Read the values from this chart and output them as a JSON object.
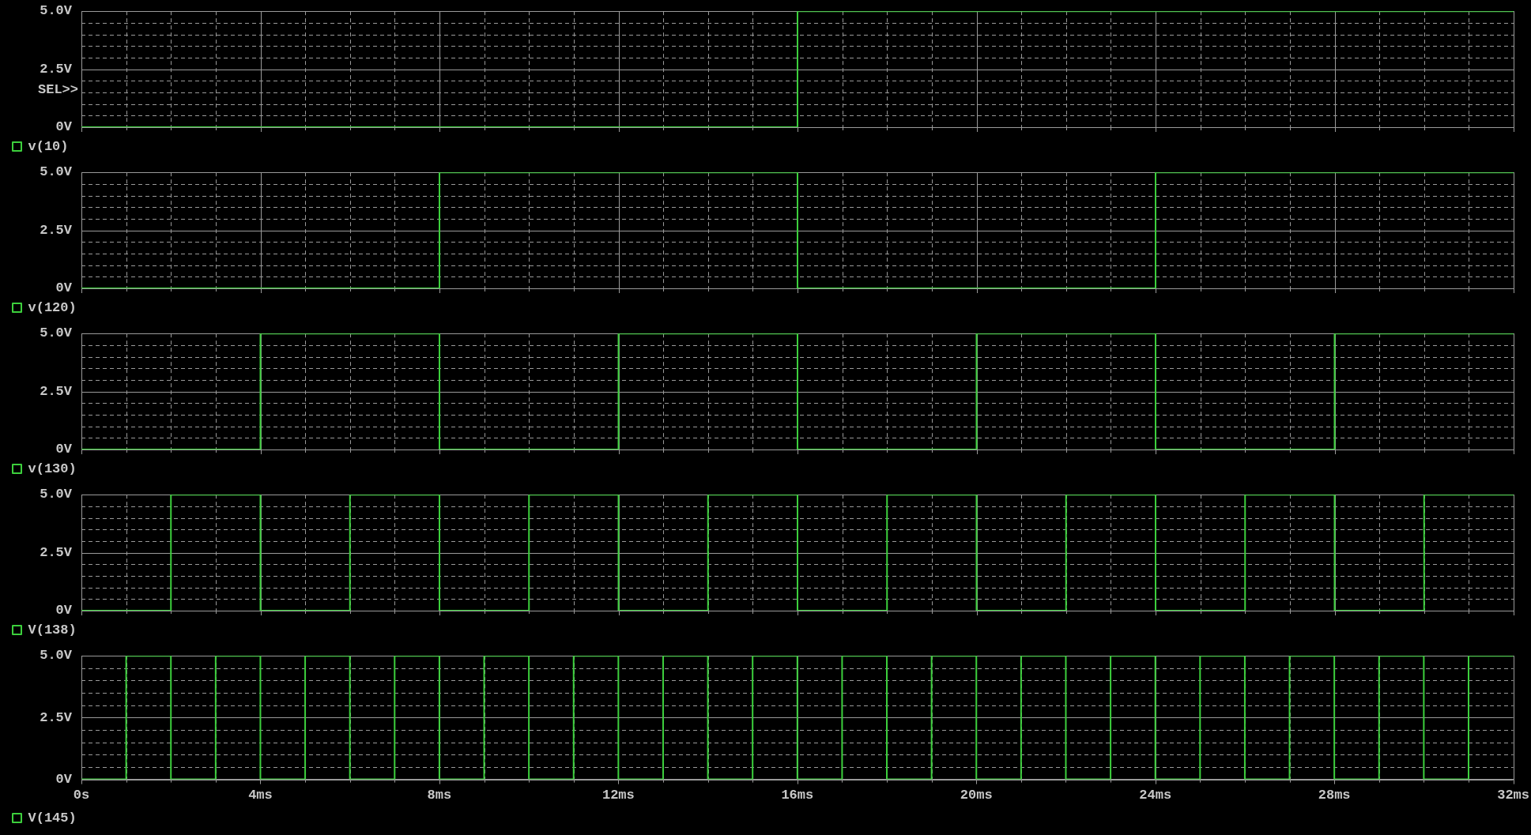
{
  "chart_data": [
    {
      "type": "step",
      "x": [
        0,
        16,
        32
      ],
      "series": [
        {
          "name": "v(10)",
          "color": "#3ccf3c",
          "values": [
            0,
            5,
            5
          ]
        }
      ],
      "xlim": [
        0,
        32
      ],
      "ylim": [
        0,
        5
      ],
      "xticks": [
        0,
        {
          "value": 1,
          "label": null
        },
        {
          "value": 2,
          "label": null
        },
        {
          "value": 3,
          "label": null
        },
        4,
        {
          "value": 5,
          "label": null
        },
        {
          "value": 6,
          "label": null
        },
        {
          "value": 7,
          "label": null
        },
        8,
        {
          "value": 9,
          "label": null
        },
        {
          "value": 10,
          "label": null
        },
        {
          "value": 11,
          "label": null
        },
        12,
        {
          "value": 13,
          "label": null
        },
        {
          "value": 14,
          "label": null
        },
        {
          "value": 15,
          "label": null
        },
        16,
        {
          "value": 17,
          "label": null
        },
        {
          "value": 18,
          "label": null
        },
        {
          "value": 19,
          "label": null
        },
        20,
        {
          "value": 21,
          "label": null
        },
        {
          "value": 22,
          "label": null
        },
        {
          "value": 23,
          "label": null
        },
        24,
        {
          "value": 25,
          "label": null
        },
        {
          "value": 26,
          "label": null
        },
        {
          "value": 27,
          "label": null
        },
        28,
        {
          "value": 29,
          "label": null
        },
        {
          "value": 30,
          "label": null
        },
        {
          "value": 31,
          "label": null
        },
        32
      ],
      "yticks": [
        {
          "value": 0,
          "label": "0V"
        },
        {
          "value": 0.5,
          "label": null
        },
        {
          "value": 1,
          "label": null
        },
        {
          "value": 1.5,
          "label": null
        },
        {
          "value": 2,
          "label": null
        },
        {
          "value": 2.5,
          "label": "2.5V"
        },
        {
          "value": 3,
          "label": null
        },
        {
          "value": 3.5,
          "label": null
        },
        {
          "value": 4,
          "label": null
        },
        {
          "value": 4.5,
          "label": null
        },
        {
          "value": 5,
          "label": "5.0V"
        }
      ],
      "grid": true,
      "legend": "bottom",
      "tick_labels": "y",
      "annotations": [
        "SEL>>"
      ]
    },
    {
      "type": "step",
      "x": [
        0,
        8,
        16,
        24,
        32
      ],
      "series": [
        {
          "name": "v(120)",
          "color": "#3ccf3c",
          "values": [
            0,
            5,
            0,
            5,
            5
          ]
        }
      ],
      "xlim": [
        0,
        32
      ],
      "ylim": [
        0,
        5
      ],
      "xticks": [
        0,
        {
          "value": 1,
          "label": null
        },
        {
          "value": 2,
          "label": null
        },
        {
          "value": 3,
          "label": null
        },
        4,
        {
          "value": 5,
          "label": null
        },
        {
          "value": 6,
          "label": null
        },
        {
          "value": 7,
          "label": null
        },
        8,
        {
          "value": 9,
          "label": null
        },
        {
          "value": 10,
          "label": null
        },
        {
          "value": 11,
          "label": null
        },
        12,
        {
          "value": 13,
          "label": null
        },
        {
          "value": 14,
          "label": null
        },
        {
          "value": 15,
          "label": null
        },
        16,
        {
          "value": 17,
          "label": null
        },
        {
          "value": 18,
          "label": null
        },
        {
          "value": 19,
          "label": null
        },
        20,
        {
          "value": 21,
          "label": null
        },
        {
          "value": 22,
          "label": null
        },
        {
          "value": 23,
          "label": null
        },
        24,
        {
          "value": 25,
          "label": null
        },
        {
          "value": 26,
          "label": null
        },
        {
          "value": 27,
          "label": null
        },
        28,
        {
          "value": 29,
          "label": null
        },
        {
          "value": 30,
          "label": null
        },
        {
          "value": 31,
          "label": null
        },
        32
      ],
      "yticks": [
        {
          "value": 0,
          "label": "0V"
        },
        {
          "value": 0.5,
          "label": null
        },
        {
          "value": 1,
          "label": null
        },
        {
          "value": 1.5,
          "label": null
        },
        {
          "value": 2,
          "label": null
        },
        {
          "value": 2.5,
          "label": "2.5V"
        },
        {
          "value": 3,
          "label": null
        },
        {
          "value": 3.5,
          "label": null
        },
        {
          "value": 4,
          "label": null
        },
        {
          "value": 4.5,
          "label": null
        },
        {
          "value": 5,
          "label": "5.0V"
        }
      ],
      "grid": true,
      "legend": "bottom",
      "tick_labels": "y"
    },
    {
      "type": "step",
      "x": [
        0,
        4,
        8,
        12,
        16,
        20,
        24,
        28,
        32
      ],
      "series": [
        {
          "name": "v(130)",
          "color": "#3ccf3c",
          "values": [
            0,
            5,
            0,
            5,
            0,
            5,
            0,
            5,
            5
          ]
        }
      ],
      "xlim": [
        0,
        32
      ],
      "ylim": [
        0,
        5
      ],
      "xticks": [
        0,
        {
          "value": 1,
          "label": null
        },
        {
          "value": 2,
          "label": null
        },
        {
          "value": 3,
          "label": null
        },
        4,
        {
          "value": 5,
          "label": null
        },
        {
          "value": 6,
          "label": null
        },
        {
          "value": 7,
          "label": null
        },
        8,
        {
          "value": 9,
          "label": null
        },
        {
          "value": 10,
          "label": null
        },
        {
          "value": 11,
          "label": null
        },
        12,
        {
          "value": 13,
          "label": null
        },
        {
          "value": 14,
          "label": null
        },
        {
          "value": 15,
          "label": null
        },
        16,
        {
          "value": 17,
          "label": null
        },
        {
          "value": 18,
          "label": null
        },
        {
          "value": 19,
          "label": null
        },
        20,
        {
          "value": 21,
          "label": null
        },
        {
          "value": 22,
          "label": null
        },
        {
          "value": 23,
          "label": null
        },
        24,
        {
          "value": 25,
          "label": null
        },
        {
          "value": 26,
          "label": null
        },
        {
          "value": 27,
          "label": null
        },
        28,
        {
          "value": 29,
          "label": null
        },
        {
          "value": 30,
          "label": null
        },
        {
          "value": 31,
          "label": null
        },
        32
      ],
      "yticks": [
        {
          "value": 0,
          "label": "0V"
        },
        {
          "value": 0.5,
          "label": null
        },
        {
          "value": 1,
          "label": null
        },
        {
          "value": 1.5,
          "label": null
        },
        {
          "value": 2,
          "label": null
        },
        {
          "value": 2.5,
          "label": "2.5V"
        },
        {
          "value": 3,
          "label": null
        },
        {
          "value": 3.5,
          "label": null
        },
        {
          "value": 4,
          "label": null
        },
        {
          "value": 4.5,
          "label": null
        },
        {
          "value": 5,
          "label": "5.0V"
        }
      ],
      "grid": true,
      "legend": "bottom",
      "tick_labels": "y"
    },
    {
      "type": "step",
      "x": [
        0,
        2,
        4,
        6,
        8,
        10,
        12,
        14,
        16,
        18,
        20,
        22,
        24,
        26,
        28,
        30,
        32
      ],
      "series": [
        {
          "name": "V(138)",
          "color": "#3ccf3c",
          "values": [
            0,
            5,
            0,
            5,
            0,
            5,
            0,
            5,
            0,
            5,
            0,
            5,
            0,
            5,
            0,
            5,
            5
          ]
        }
      ],
      "xlim": [
        0,
        32
      ],
      "ylim": [
        0,
        5
      ],
      "xticks": [
        0,
        {
          "value": 1,
          "label": null
        },
        {
          "value": 2,
          "label": null
        },
        {
          "value": 3,
          "label": null
        },
        4,
        {
          "value": 5,
          "label": null
        },
        {
          "value": 6,
          "label": null
        },
        {
          "value": 7,
          "label": null
        },
        8,
        {
          "value": 9,
          "label": null
        },
        {
          "value": 10,
          "label": null
        },
        {
          "value": 11,
          "label": null
        },
        12,
        {
          "value": 13,
          "label": null
        },
        {
          "value": 14,
          "label": null
        },
        {
          "value": 15,
          "label": null
        },
        16,
        {
          "value": 17,
          "label": null
        },
        {
          "value": 18,
          "label": null
        },
        {
          "value": 19,
          "label": null
        },
        20,
        {
          "value": 21,
          "label": null
        },
        {
          "value": 22,
          "label": null
        },
        {
          "value": 23,
          "label": null
        },
        24,
        {
          "value": 25,
          "label": null
        },
        {
          "value": 26,
          "label": null
        },
        {
          "value": 27,
          "label": null
        },
        28,
        {
          "value": 29,
          "label": null
        },
        {
          "value": 30,
          "label": null
        },
        {
          "value": 31,
          "label": null
        },
        32
      ],
      "yticks": [
        {
          "value": 0,
          "label": "0V"
        },
        {
          "value": 0.5,
          "label": null
        },
        {
          "value": 1,
          "label": null
        },
        {
          "value": 1.5,
          "label": null
        },
        {
          "value": 2,
          "label": null
        },
        {
          "value": 2.5,
          "label": "2.5V"
        },
        {
          "value": 3,
          "label": null
        },
        {
          "value": 3.5,
          "label": null
        },
        {
          "value": 4,
          "label": null
        },
        {
          "value": 4.5,
          "label": null
        },
        {
          "value": 5,
          "label": "5.0V"
        }
      ],
      "grid": true,
      "legend": "bottom",
      "tick_labels": "y"
    },
    {
      "type": "step",
      "x": [
        0,
        1,
        2,
        3,
        4,
        5,
        6,
        7,
        8,
        9,
        10,
        11,
        12,
        13,
        14,
        15,
        16,
        17,
        18,
        19,
        20,
        21,
        22,
        23,
        24,
        25,
        26,
        27,
        28,
        29,
        30,
        31,
        32
      ],
      "series": [
        {
          "name": "V(145)",
          "color": "#3ccf3c",
          "values": [
            0,
            5,
            0,
            5,
            0,
            5,
            0,
            5,
            0,
            5,
            0,
            5,
            0,
            5,
            0,
            5,
            0,
            5,
            0,
            5,
            0,
            5,
            0,
            5,
            0,
            5,
            0,
            5,
            0,
            5,
            0,
            5,
            5
          ]
        }
      ],
      "xlim": [
        0,
        32
      ],
      "ylim": [
        0,
        5
      ],
      "xticks": [
        {
          "value": 0,
          "label": "0s"
        },
        {
          "value": 1,
          "label": null
        },
        {
          "value": 2,
          "label": null
        },
        {
          "value": 3,
          "label": null
        },
        {
          "value": 4,
          "label": "4ms"
        },
        {
          "value": 5,
          "label": null
        },
        {
          "value": 6,
          "label": null
        },
        {
          "value": 7,
          "label": null
        },
        {
          "value": 8,
          "label": "8ms"
        },
        {
          "value": 9,
          "label": null
        },
        {
          "value": 10,
          "label": null
        },
        {
          "value": 11,
          "label": null
        },
        {
          "value": 12,
          "label": "12ms"
        },
        {
          "value": 13,
          "label": null
        },
        {
          "value": 14,
          "label": null
        },
        {
          "value": 15,
          "label": null
        },
        {
          "value": 16,
          "label": "16ms"
        },
        {
          "value": 17,
          "label": null
        },
        {
          "value": 18,
          "label": null
        },
        {
          "value": 19,
          "label": null
        },
        {
          "value": 20,
          "label": "20ms"
        },
        {
          "value": 21,
          "label": null
        },
        {
          "value": 22,
          "label": null
        },
        {
          "value": 23,
          "label": null
        },
        {
          "value": 24,
          "label": "24ms"
        },
        {
          "value": 25,
          "label": null
        },
        {
          "value": 26,
          "label": null
        },
        {
          "value": 27,
          "label": null
        },
        {
          "value": 28,
          "label": "28ms"
        },
        {
          "value": 29,
          "label": null
        },
        {
          "value": 30,
          "label": null
        },
        {
          "value": 31,
          "label": null
        },
        {
          "value": 32,
          "label": "32ms"
        }
      ],
      "yticks": [
        {
          "value": 0,
          "label": "0V"
        },
        {
          "value": 0.5,
          "label": null
        },
        {
          "value": 1,
          "label": null
        },
        {
          "value": 1.5,
          "label": null
        },
        {
          "value": 2,
          "label": null
        },
        {
          "value": 2.5,
          "label": "2.5V"
        },
        {
          "value": 3,
          "label": null
        },
        {
          "value": 3.5,
          "label": null
        },
        {
          "value": 4,
          "label": null
        },
        {
          "value": 4.5,
          "label": null
        },
        {
          "value": 5,
          "label": "5.0V"
        }
      ],
      "grid": true,
      "legend": "bottom"
    }
  ]
}
